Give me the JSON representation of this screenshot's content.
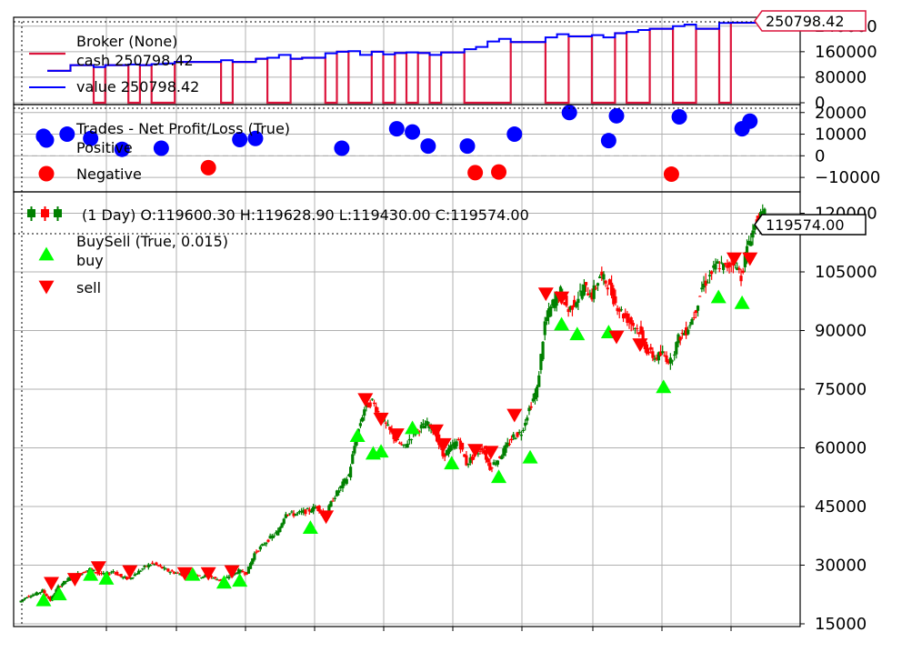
{
  "colors": {
    "cash": "#dc143c",
    "value": "#0000ff",
    "win": "#0000ff",
    "loss": "#ff0000",
    "buy": "#00ff00",
    "sell": "#ff0000",
    "candle_up": "#008000",
    "candle_down": "#ff0000"
  },
  "chart_data": [
    {
      "type": "line",
      "title": "Broker (None)",
      "legend_placement": "top-left",
      "grid": true,
      "ylim": [
        0,
        250798.42
      ],
      "y_ticks": [
        "0",
        "80000",
        "160000",
        "240000"
      ],
      "series": [
        {
          "name": "cash 250798.42",
          "role": "cash",
          "values": [
            100000,
            100000,
            118000,
            118000,
            0,
            118000,
            118000,
            0,
            118000,
            0,
            0,
            128000,
            128000,
            128000,
            128000,
            0,
            128000,
            128000,
            138000,
            0,
            0,
            138000,
            141000,
            141000,
            0,
            160000,
            0,
            0,
            160000,
            0,
            156000,
            0,
            156000,
            0,
            158000,
            158000,
            0,
            0,
            0,
            0,
            190000,
            190000,
            190000,
            0,
            0,
            208000,
            208000,
            0,
            0,
            218000,
            0,
            0,
            232000,
            232000,
            0,
            0,
            232000,
            232000,
            0,
            250798,
            250798,
            250798,
            250798
          ]
        },
        {
          "name": "value 250798.42",
          "role": "value",
          "values": [
            100000,
            100000,
            118000,
            118000,
            112000,
            118000,
            118000,
            120000,
            118000,
            121000,
            123000,
            128000,
            128000,
            128000,
            128000,
            133000,
            128000,
            128000,
            138000,
            141000,
            150000,
            138000,
            141000,
            141000,
            155000,
            160000,
            162000,
            150000,
            160000,
            152000,
            156000,
            158000,
            156000,
            150000,
            158000,
            158000,
            168000,
            175000,
            192000,
            200000,
            190000,
            190000,
            190000,
            205000,
            215000,
            208000,
            208000,
            212000,
            205000,
            218000,
            222000,
            228000,
            232000,
            232000,
            240000,
            245000,
            232000,
            232000,
            250000,
            250798,
            250798,
            250798,
            250798
          ]
        }
      ],
      "last_value_label": "250798.42"
    },
    {
      "type": "scatter",
      "title": "Trades - Net Profit/Loss (True)",
      "legend_placement": "top-left",
      "grid": true,
      "ylim": [
        -15000,
        22000
      ],
      "y_ticks": [
        "−10000",
        "0",
        "10000",
        "20000"
      ],
      "series": [
        {
          "name": "Positive",
          "role": "win",
          "x": [
            3,
            6,
            9,
            13,
            18,
            28,
            30,
            41,
            48,
            50,
            52,
            57,
            63,
            70,
            75,
            76,
            84,
            92,
            93
          ],
          "values": [
            9000,
            10000,
            8000,
            3000,
            3500,
            7500,
            8000,
            3500,
            12500,
            11000,
            4500,
            4500,
            10000,
            20000,
            7000,
            18500,
            18000,
            12500,
            16000
          ]
        },
        {
          "name": "Negative",
          "role": "loss",
          "x": [
            24,
            58,
            61,
            83
          ],
          "values": [
            -5500,
            -7800,
            -7500,
            -8500
          ]
        }
      ]
    },
    {
      "type": "candlestick",
      "title": "(1 Day) O:119600.30 H:119628.90 L:119430.00 C:119574.00",
      "legend_placement": "top-left",
      "grid": true,
      "ylim": [
        15000,
        125000
      ],
      "y_ticks": [
        "15000",
        "30000",
        "45000",
        "60000",
        "75000",
        "90000",
        "105000",
        "120000"
      ],
      "last_value_label": "119574.00",
      "series": [
        {
          "name": "close",
          "values": [
            20500,
            22000,
            22500,
            23500,
            21000,
            24500,
            26000,
            27500,
            28000,
            29000,
            28000,
            27500,
            28500,
            27000,
            26500,
            28000,
            29500,
            30500,
            29500,
            28500,
            28000,
            27500,
            28500,
            27000,
            27500,
            26500,
            26000,
            27500,
            28500,
            28000,
            33000,
            35000,
            37000,
            38500,
            43500,
            43000,
            43500,
            44000,
            45000,
            42500,
            47000,
            50000,
            53000,
            63000,
            70000,
            72000,
            68000,
            65000,
            62000,
            60000,
            63000,
            65000,
            66000,
            64000,
            58000,
            60000,
            62000,
            56000,
            58000,
            60000,
            55000,
            57000,
            60000,
            63000,
            64000,
            70000,
            75000,
            92000,
            97000,
            100000,
            95000,
            98000,
            101000,
            99000,
            104000,
            102000,
            97000,
            94000,
            92000,
            90000,
            85000,
            83000,
            84000,
            82000,
            88000,
            90000,
            94000,
            101000,
            104000,
            107000,
            106000,
            108000,
            104000,
            113000,
            118000,
            119574
          ]
        }
      ],
      "markers": [
        {
          "name": "BuySell (True, 0.015)",
          "role": "label"
        },
        {
          "name": "buy",
          "role": "buy",
          "x": [
            3,
            5,
            9,
            11,
            22,
            26,
            28,
            37,
            43,
            45,
            46,
            50,
            55,
            61,
            65,
            69,
            71,
            75,
            82,
            89,
            92
          ],
          "values": [
            21000,
            22500,
            27500,
            26500,
            27500,
            25500,
            26000,
            39500,
            63000,
            58500,
            59000,
            65000,
            56000,
            52500,
            57500,
            91500,
            89000,
            89500,
            75500,
            98500,
            97000
          ]
        },
        {
          "name": "sell",
          "role": "sell",
          "x": [
            4,
            7,
            10,
            14,
            21,
            24,
            27,
            39,
            44,
            46,
            48,
            53,
            54,
            58,
            60,
            63,
            67,
            69,
            76,
            79,
            91,
            93
          ],
          "values": [
            25500,
            26500,
            29500,
            28500,
            28000,
            28000,
            28500,
            42500,
            72500,
            67500,
            63500,
            64500,
            61000,
            59500,
            59000,
            68500,
            99500,
            98500,
            88500,
            86500,
            108500,
            108500
          ]
        }
      ]
    }
  ]
}
